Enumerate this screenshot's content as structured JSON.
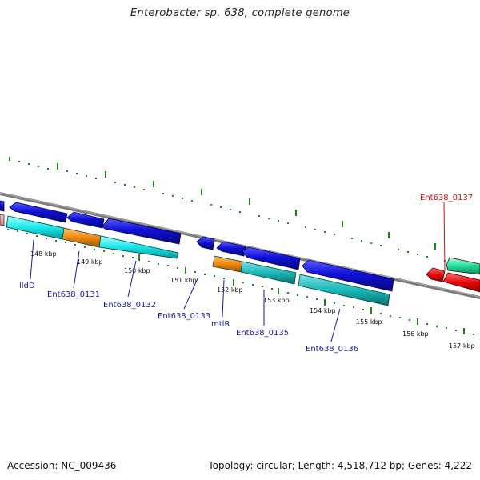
{
  "header": {
    "title": "Enterobacter sp. 638, complete genome"
  },
  "footer": {
    "accession": "Accession: NC_009436",
    "summary": "Topology: circular; Length: 4,518,712 bp; Genes: 4,222"
  },
  "map": {
    "tick_labels": [
      "148 kbp",
      "149 kbp",
      "150 kbp",
      "151 kbp",
      "152 kbp",
      "153 kbp",
      "154 kbp",
      "155 kbp",
      "156 kbp",
      "157 kbp"
    ],
    "gene_labels": [
      "lldD",
      "Ent638_0131",
      "Ent638_0132",
      "Ent638_0133",
      "mtlR",
      "Ent638_0135",
      "Ent638_0136",
      "Ent638_0137"
    ],
    "colors": {
      "cds": "#1010d8",
      "gene_cyan": "#18e6e6",
      "gene_teal": "#1ab8b8",
      "gene_orange": "#f08a10",
      "red_cds": "#e80808",
      "green_feature": "#22dd99",
      "tick": "#1a8a1a",
      "backbone": "#7a7a7a",
      "label_blue": "#1a1a9c",
      "label_red": "#cc1111"
    }
  }
}
